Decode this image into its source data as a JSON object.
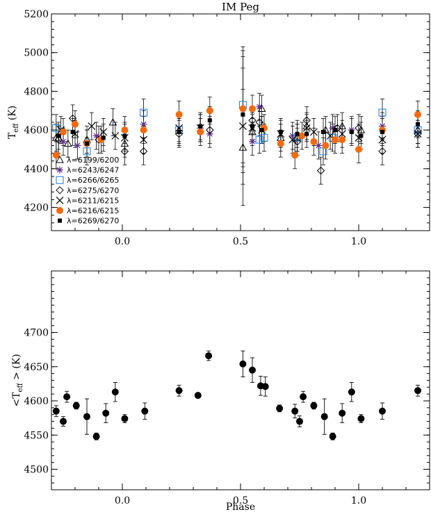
{
  "chart_data": [
    {
      "type": "scatter",
      "title": "IM Peg",
      "xlabel": "",
      "ylabel_main": "T",
      "ylabel_sub": "eff",
      "ylabel_unit": "(K)",
      "xlim": [
        -0.3,
        1.3
      ],
      "ylim": [
        4080,
        5200
      ],
      "xticks": [
        0.0,
        0.5,
        1.0
      ],
      "xtick_labels": [
        "0.0",
        "0.5",
        "1.0"
      ],
      "yticks": [
        4200,
        4400,
        4600,
        4800,
        5000,
        5200
      ],
      "ytick_labels": [
        "4200",
        "4400",
        "4600",
        "4800",
        "5000",
        "5200"
      ],
      "legend_position": "lower-left",
      "series": [
        {
          "name": "λ=6199/6200",
          "marker": "triangle",
          "color": "#000000",
          "x": [
            -0.28,
            -0.23,
            -0.15,
            -0.04,
            0.01,
            0.51,
            0.55,
            0.59,
            0.67,
            0.74,
            0.78,
            0.86,
            0.93,
            1.01,
            1.25
          ],
          "y": [
            4560,
            4530,
            4550,
            4640,
            4530,
            4510,
            4590,
            4710,
            4560,
            4560,
            4620,
            4600,
            4620,
            4600,
            4600
          ]
        },
        {
          "name": "λ=6243/6247",
          "marker": "asterisk",
          "color": "#5b2a86",
          "x": [
            -0.25,
            -0.19,
            -0.11,
            0.09,
            0.33,
            0.37,
            0.55,
            0.58,
            0.72,
            0.83,
            0.89,
            0.97,
            1.1
          ],
          "y": [
            4540,
            4520,
            4570,
            4630,
            4610,
            4580,
            4540,
            4720,
            4570,
            4520,
            4610,
            4600,
            4620
          ]
        },
        {
          "name": "λ=6266/6265",
          "marker": "square",
          "color": "#2e86de",
          "x": [
            -0.28,
            -0.15,
            0.09,
            0.24,
            0.51,
            0.58,
            0.6,
            0.74,
            0.85,
            0.89,
            1.1,
            1.25
          ],
          "y": [
            4610,
            4490,
            4690,
            4600,
            4730,
            4550,
            4560,
            4560,
            4490,
            4560,
            4690,
            4600
          ]
        },
        {
          "name": "λ=6275/6270",
          "marker": "diamond",
          "color": "#000000",
          "x": [
            -0.27,
            -0.21,
            -0.1,
            0.01,
            0.09,
            0.24,
            0.37,
            0.55,
            0.58,
            0.74,
            0.78,
            0.84,
            0.91,
            1.0,
            1.1,
            1.25
          ],
          "y": [
            4550,
            4660,
            4550,
            4490,
            4490,
            4580,
            4600,
            4650,
            4640,
            4540,
            4650,
            4390,
            4610,
            4610,
            4490,
            4580
          ]
        },
        {
          "name": "λ=6211/6215",
          "marker": "cross",
          "color": "#000000",
          "x": [
            -0.26,
            -0.2,
            -0.13,
            -0.08,
            -0.03,
            0.01,
            0.09,
            0.24,
            0.33,
            0.51,
            0.55,
            0.59,
            0.67,
            0.72,
            0.78,
            0.81,
            0.88,
            0.93,
            1.0,
            1.1,
            1.25
          ],
          "y": [
            4600,
            4580,
            4620,
            4590,
            4570,
            4560,
            4550,
            4610,
            4610,
            4620,
            4610,
            4600,
            4580,
            4550,
            4610,
            4590,
            4570,
            4580,
            4560,
            4550,
            4580
          ]
        },
        {
          "name": "λ=6216/6215",
          "marker": "circle",
          "color": "#f26b0f",
          "x": [
            -0.28,
            -0.25,
            -0.2,
            -0.15,
            -0.09,
            0.01,
            0.09,
            0.24,
            0.33,
            0.37,
            0.51,
            0.55,
            0.6,
            0.67,
            0.73,
            0.76,
            0.81,
            0.86,
            0.9,
            0.93,
            1.0,
            1.1,
            1.25
          ],
          "y": [
            4470,
            4590,
            4630,
            4530,
            4550,
            4600,
            4600,
            4680,
            4590,
            4700,
            4710,
            4710,
            4610,
            4530,
            4470,
            4570,
            4540,
            4520,
            4550,
            4550,
            4500,
            4600,
            4680
          ]
        },
        {
          "name": "λ=6269/6270",
          "marker": "filled-square",
          "color": "#000000",
          "x": [
            -0.27,
            -0.21,
            -0.15,
            -0.08,
            0.01,
            0.24,
            0.33,
            0.37,
            0.51,
            0.55,
            0.59,
            0.67,
            0.74,
            0.78,
            0.85,
            0.9,
            0.97,
            1.01,
            1.1,
            1.25
          ],
          "y": [
            4570,
            4590,
            4530,
            4560,
            4570,
            4590,
            4620,
            4650,
            4680,
            4620,
            4600,
            4590,
            4580,
            4580,
            4590,
            4600,
            4590,
            4570,
            4590,
            4630
          ]
        }
      ]
    },
    {
      "type": "scatter",
      "title": "",
      "xlabel": "Phase",
      "ylabel_main": "<T",
      "ylabel_sub": "eff",
      "ylabel_unit": "> (K)",
      "xlim": [
        -0.3,
        1.3
      ],
      "ylim": [
        4470,
        4790
      ],
      "xticks": [
        0.0,
        0.5,
        1.0
      ],
      "xtick_labels": [
        "0.0",
        "0.5",
        "1.0"
      ],
      "yticks": [
        4500,
        4550,
        4600,
        4650,
        4700
      ],
      "ytick_labels": [
        "4500",
        "4550",
        "4600",
        "4650",
        "4700"
      ],
      "series": [
        {
          "name": "",
          "marker": "circle",
          "color": "#000000",
          "x": [
            -0.28,
            -0.25,
            -0.235,
            -0.195,
            -0.15,
            -0.11,
            -0.07,
            -0.03,
            0.01,
            0.095,
            0.24,
            0.32,
            0.365,
            0.51,
            0.55,
            0.585,
            0.605,
            0.665,
            0.73,
            0.75,
            0.765,
            0.81,
            0.855,
            0.89,
            0.93,
            0.97,
            1.01,
            1.1,
            1.25
          ],
          "y": [
            4585,
            4570,
            4606,
            4593,
            4577,
            4548,
            4582,
            4613,
            4574,
            4585,
            4615,
            4608,
            4666,
            4654,
            4645,
            4622,
            4621,
            4589,
            4585,
            4570,
            4606,
            4593,
            4577,
            4548,
            4582,
            4613,
            4574,
            4585,
            4615
          ],
          "err": [
            8,
            7,
            8,
            5,
            26,
            5,
            14,
            14,
            6,
            12,
            8,
            3,
            7,
            19,
            18,
            14,
            14,
            5,
            10,
            8,
            8,
            5,
            26,
            5,
            14,
            14,
            6,
            12,
            8
          ]
        }
      ]
    }
  ]
}
